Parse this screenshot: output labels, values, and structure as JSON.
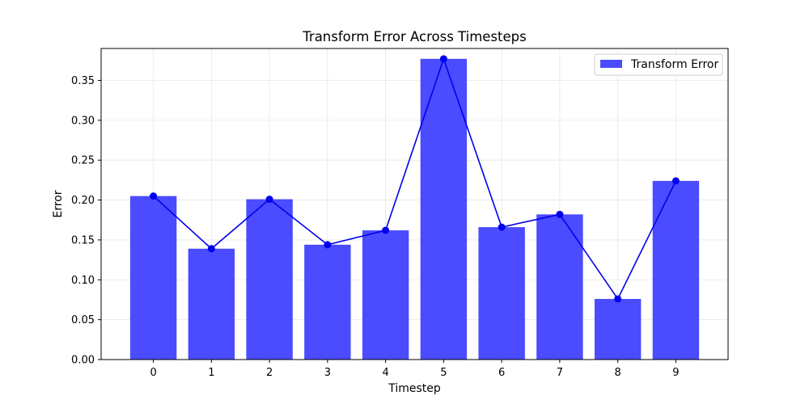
{
  "chart_data": {
    "type": "bar",
    "title": "Transform Error Across Timesteps",
    "xlabel": "Timestep",
    "ylabel": "Error",
    "categories": [
      "0",
      "1",
      "2",
      "3",
      "4",
      "5",
      "6",
      "7",
      "8",
      "9"
    ],
    "ylim": [
      0,
      0.39
    ],
    "yticks": [
      "0.00",
      "0.05",
      "0.10",
      "0.15",
      "0.20",
      "0.25",
      "0.30",
      "0.35"
    ],
    "grid": true,
    "legend_position": "top-right",
    "series": [
      {
        "name": "Transform Error",
        "kind": "bar",
        "color": "#4b4bff",
        "values": [
          0.205,
          0.139,
          0.201,
          0.144,
          0.162,
          0.377,
          0.166,
          0.182,
          0.076,
          0.224
        ]
      },
      {
        "kind": "line",
        "marker": "circle",
        "color": "#0000ee",
        "values": [
          0.205,
          0.139,
          0.201,
          0.144,
          0.162,
          0.377,
          0.166,
          0.182,
          0.076,
          0.224
        ]
      }
    ]
  }
}
